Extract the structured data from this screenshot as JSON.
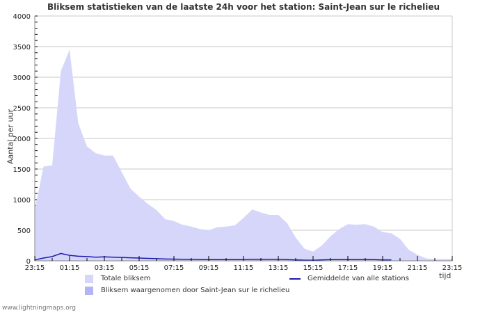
{
  "title": "Bliksem statistieken van de laatste 24h voor het station: Saint-Jean sur le richelieu",
  "footer": "www.lightningmaps.org",
  "colors": {
    "total_fill": "#d6d6fb",
    "station_fill": "#b3b3f5",
    "avg_line": "#1a1ab0",
    "grid": "#c8c8c8"
  },
  "legend": {
    "total": "Totale bliksem",
    "station": "Bliksem waargenomen door Saint-Jean sur le richelieu",
    "average": "Gemiddelde van alle stations"
  },
  "chart_data": {
    "type": "area",
    "title": "Bliksem statistieken van de laatste 24h voor het station: Saint-Jean sur le richelieu",
    "xlabel": "tijd",
    "ylabel": "Aantal per uur",
    "ylim": [
      0,
      4000
    ],
    "yticks": [
      0,
      500,
      1000,
      1500,
      2000,
      2500,
      3000,
      3500,
      4000
    ],
    "xticks": [
      "23:15",
      "01:15",
      "03:15",
      "05:15",
      "07:15",
      "09:15",
      "11:15",
      "13:15",
      "15:15",
      "17:15",
      "19:15",
      "21:15",
      "23:15"
    ],
    "grid": true,
    "legend_position": "bottom",
    "x": [
      "23:15",
      "23:45",
      "00:15",
      "00:45",
      "01:15",
      "01:45",
      "02:15",
      "02:45",
      "03:15",
      "03:45",
      "04:15",
      "04:45",
      "05:15",
      "05:45",
      "06:15",
      "06:45",
      "07:15",
      "07:45",
      "08:15",
      "08:45",
      "09:15",
      "09:45",
      "10:15",
      "10:45",
      "11:15",
      "11:45",
      "12:15",
      "12:45",
      "13:15",
      "13:45",
      "14:15",
      "14:45",
      "15:15",
      "15:45",
      "16:15",
      "16:45",
      "17:15",
      "17:45",
      "18:15",
      "18:45",
      "19:15",
      "19:45",
      "20:15",
      "20:45",
      "21:15",
      "21:45",
      "22:15",
      "22:45",
      "23:15"
    ],
    "series": [
      {
        "name": "Totale bliksem",
        "values": [
          830,
          1540,
          1560,
          3100,
          3450,
          2250,
          1870,
          1760,
          1720,
          1720,
          1450,
          1180,
          1050,
          930,
          830,
          680,
          650,
          590,
          560,
          520,
          500,
          550,
          560,
          580,
          700,
          840,
          790,
          750,
          750,
          620,
          380,
          200,
          150,
          250,
          400,
          520,
          600,
          590,
          600,
          560,
          470,
          450,
          360,
          180,
          100,
          40,
          30,
          30,
          30
        ]
      },
      {
        "name": "Bliksem waargenomen door Saint-Jean sur le richelieu",
        "values": [
          0,
          0,
          0,
          0,
          0,
          0,
          0,
          0,
          0,
          0,
          0,
          0,
          0,
          0,
          0,
          0,
          0,
          0,
          0,
          0,
          0,
          0,
          0,
          0,
          0,
          0,
          0,
          0,
          0,
          0,
          0,
          0,
          0,
          0,
          0,
          0,
          0,
          0,
          0,
          0,
          0,
          0,
          0,
          0,
          0,
          0,
          0,
          0,
          0
        ]
      },
      {
        "name": "Gemiddelde van alle stations",
        "values": [
          15,
          45,
          70,
          120,
          90,
          75,
          70,
          60,
          65,
          60,
          55,
          50,
          45,
          40,
          35,
          30,
          28,
          25,
          25,
          22,
          20,
          20,
          20,
          20,
          22,
          25,
          25,
          25,
          25,
          20,
          15,
          12,
          10,
          15,
          20,
          22,
          22,
          22,
          22,
          20,
          15,
          15,
          null,
          null,
          null,
          null,
          null,
          null,
          null
        ]
      }
    ]
  }
}
